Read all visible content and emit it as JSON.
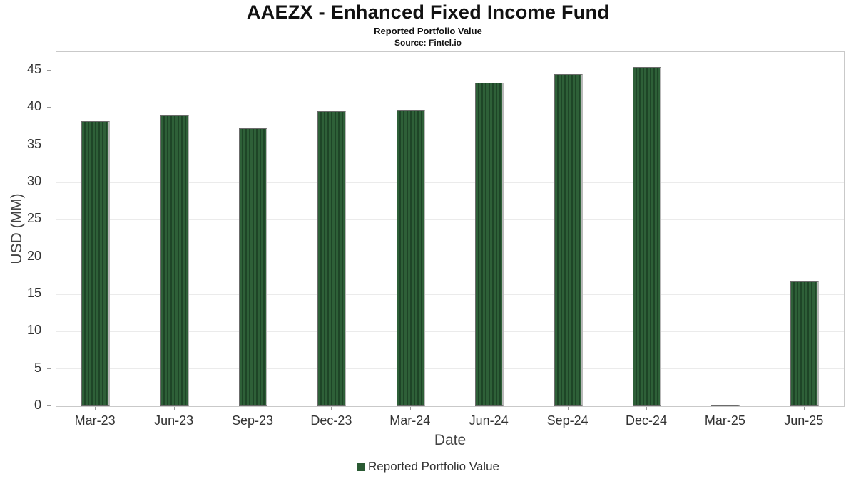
{
  "header": {
    "title": "AAEZX - Enhanced Fixed Income Fund",
    "subtitle": "Reported Portfolio Value",
    "source": "Source: Fintel.io"
  },
  "chart_data": {
    "type": "bar",
    "title": "AAEZX - Enhanced Fixed Income Fund",
    "subtitle": "Reported Portfolio Value",
    "source": "Source: Fintel.io",
    "categories": [
      "Mar-23",
      "Jun-23",
      "Sep-23",
      "Dec-23",
      "Mar-24",
      "Jun-24",
      "Sep-24",
      "Dec-24",
      "Mar-25",
      "Jun-25"
    ],
    "values": [
      38.2,
      39.0,
      37.3,
      39.6,
      39.7,
      43.4,
      44.5,
      45.5,
      0.15,
      16.7
    ],
    "series": [
      {
        "name": "Reported Portfolio Value",
        "values": [
          38.2,
          39.0,
          37.3,
          39.6,
          39.7,
          43.4,
          44.5,
          45.5,
          0.15,
          16.7
        ]
      }
    ],
    "xlabel": "Date",
    "ylabel": "USD (MM)",
    "ylim": [
      0,
      47.5
    ],
    "yticks": [
      0,
      5,
      10,
      15,
      20,
      25,
      30,
      35,
      40,
      45
    ],
    "grid": true,
    "legend": [
      "Reported Portfolio Value"
    ],
    "legend_position": "bottom",
    "bar_color": "#2a5a33"
  },
  "colors": {
    "bar": "#2a5a33",
    "grid": "#ebebeb",
    "plot_border": "#c9c9c9",
    "text": "#333333"
  }
}
